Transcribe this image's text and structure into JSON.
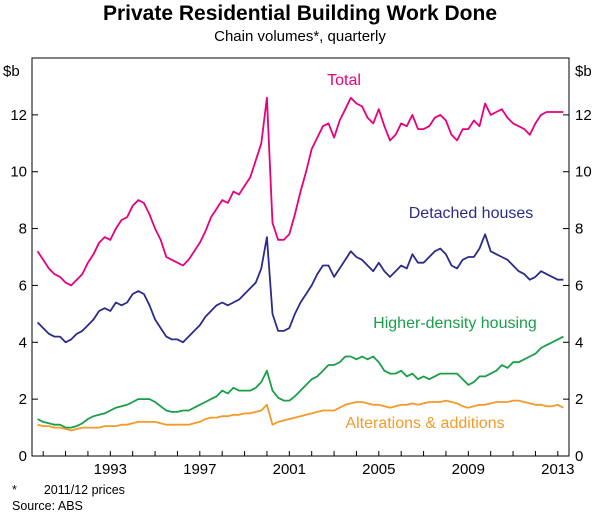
{
  "chart_data": {
    "type": "line",
    "title": "Private Residential Building Work Done",
    "subtitle": "Chain volumes*, quarterly",
    "ylabel_left": "$b",
    "ylabel_right": "$b",
    "ylim": [
      0,
      14
    ],
    "yticks": [
      0,
      2,
      4,
      6,
      8,
      10,
      12
    ],
    "xlim": [
      1989.5,
      2013.5
    ],
    "xticks": [
      1993,
      1997,
      2001,
      2005,
      2009,
      2013
    ],
    "xtick_labels": [
      "1993",
      "1997",
      "2001",
      "2005",
      "2009",
      "2013"
    ],
    "grid": false,
    "series": [
      {
        "name": "Total",
        "color": "#e6007e",
        "x": [
          1989.75,
          1990.0,
          1990.25,
          1990.5,
          1990.75,
          1991.0,
          1991.25,
          1991.5,
          1991.75,
          1992.0,
          1992.25,
          1992.5,
          1992.75,
          1993.0,
          1993.25,
          1993.5,
          1993.75,
          1994.0,
          1994.25,
          1994.5,
          1994.75,
          1995.0,
          1995.25,
          1995.5,
          1995.75,
          1996.0,
          1996.25,
          1996.5,
          1996.75,
          1997.0,
          1997.25,
          1997.5,
          1997.75,
          1998.0,
          1998.25,
          1998.5,
          1998.75,
          1999.0,
          1999.25,
          1999.5,
          1999.75,
          2000.0,
          2000.25,
          2000.5,
          2000.75,
          2001.0,
          2001.25,
          2001.5,
          2001.75,
          2002.0,
          2002.25,
          2002.5,
          2002.75,
          2003.0,
          2003.25,
          2003.5,
          2003.75,
          2004.0,
          2004.25,
          2004.5,
          2004.75,
          2005.0,
          2005.25,
          2005.5,
          2005.75,
          2006.0,
          2006.25,
          2006.5,
          2006.75,
          2007.0,
          2007.25,
          2007.5,
          2007.75,
          2008.0,
          2008.25,
          2008.5,
          2008.75,
          2009.0,
          2009.25,
          2009.5,
          2009.75,
          2010.0,
          2010.25,
          2010.5,
          2010.75,
          2011.0,
          2011.25,
          2011.5,
          2011.75,
          2012.0,
          2012.25,
          2012.5,
          2012.75,
          2013.0,
          2013.25
        ],
        "values": [
          7.2,
          6.9,
          6.6,
          6.4,
          6.3,
          6.1,
          6.0,
          6.2,
          6.4,
          6.8,
          7.1,
          7.5,
          7.7,
          7.6,
          8.0,
          8.3,
          8.4,
          8.8,
          9.0,
          8.9,
          8.5,
          8.0,
          7.6,
          7.0,
          6.9,
          6.8,
          6.7,
          6.9,
          7.2,
          7.5,
          7.9,
          8.4,
          8.7,
          9.0,
          8.9,
          9.3,
          9.2,
          9.5,
          9.8,
          10.4,
          11.0,
          12.6,
          8.2,
          7.6,
          7.6,
          7.8,
          8.5,
          9.3,
          10.0,
          10.8,
          11.2,
          11.6,
          11.7,
          11.2,
          11.8,
          12.2,
          12.6,
          12.4,
          12.3,
          11.9,
          11.7,
          12.2,
          11.6,
          11.1,
          11.3,
          11.7,
          11.6,
          12.0,
          11.5,
          11.5,
          11.6,
          11.9,
          12.0,
          11.8,
          11.3,
          11.1,
          11.5,
          11.5,
          11.8,
          11.6,
          12.4,
          12.0,
          12.1,
          12.2,
          11.9,
          11.7,
          11.6,
          11.5,
          11.3,
          11.7,
          12.0,
          12.1,
          12.1,
          12.1,
          12.1
        ],
        "label": "Total"
      },
      {
        "name": "Detached houses",
        "color": "#2b2b8c",
        "x": [
          1989.75,
          1990.0,
          1990.25,
          1990.5,
          1990.75,
          1991.0,
          1991.25,
          1991.5,
          1991.75,
          1992.0,
          1992.25,
          1992.5,
          1992.75,
          1993.0,
          1993.25,
          1993.5,
          1993.75,
          1994.0,
          1994.25,
          1994.5,
          1994.75,
          1995.0,
          1995.25,
          1995.5,
          1995.75,
          1996.0,
          1996.25,
          1996.5,
          1996.75,
          1997.0,
          1997.25,
          1997.5,
          1997.75,
          1998.0,
          1998.25,
          1998.5,
          1998.75,
          1999.0,
          1999.25,
          1999.5,
          1999.75,
          2000.0,
          2000.25,
          2000.5,
          2000.75,
          2001.0,
          2001.25,
          2001.5,
          2001.75,
          2002.0,
          2002.25,
          2002.5,
          2002.75,
          2003.0,
          2003.25,
          2003.5,
          2003.75,
          2004.0,
          2004.25,
          2004.5,
          2004.75,
          2005.0,
          2005.25,
          2005.5,
          2005.75,
          2006.0,
          2006.25,
          2006.5,
          2006.75,
          2007.0,
          2007.25,
          2007.5,
          2007.75,
          2008.0,
          2008.25,
          2008.5,
          2008.75,
          2009.0,
          2009.25,
          2009.5,
          2009.75,
          2010.0,
          2010.25,
          2010.5,
          2010.75,
          2011.0,
          2011.25,
          2011.5,
          2011.75,
          2012.0,
          2012.25,
          2012.5,
          2012.75,
          2013.0,
          2013.25
        ],
        "values": [
          4.7,
          4.5,
          4.3,
          4.2,
          4.2,
          4.0,
          4.1,
          4.3,
          4.4,
          4.6,
          4.8,
          5.1,
          5.2,
          5.1,
          5.4,
          5.3,
          5.4,
          5.7,
          5.8,
          5.7,
          5.3,
          4.8,
          4.5,
          4.2,
          4.1,
          4.1,
          4.0,
          4.2,
          4.4,
          4.6,
          4.9,
          5.1,
          5.3,
          5.4,
          5.3,
          5.4,
          5.5,
          5.7,
          5.9,
          6.1,
          6.6,
          7.7,
          5.0,
          4.4,
          4.4,
          4.5,
          5.0,
          5.4,
          5.7,
          6.0,
          6.4,
          6.7,
          6.7,
          6.3,
          6.6,
          6.9,
          7.2,
          7.0,
          6.9,
          6.7,
          6.5,
          6.8,
          6.5,
          6.3,
          6.5,
          6.7,
          6.6,
          7.1,
          6.8,
          6.8,
          7.0,
          7.2,
          7.3,
          7.1,
          6.7,
          6.6,
          6.9,
          7.0,
          7.0,
          7.3,
          7.8,
          7.2,
          7.1,
          7.0,
          6.9,
          6.7,
          6.5,
          6.4,
          6.2,
          6.3,
          6.5,
          6.4,
          6.3,
          6.2,
          6.2
        ],
        "label": "Detached houses"
      },
      {
        "name": "Higher-density housing",
        "color": "#1a9e4a",
        "x": [
          1989.75,
          1990.0,
          1990.25,
          1990.5,
          1990.75,
          1991.0,
          1991.25,
          1991.5,
          1991.75,
          1992.0,
          1992.25,
          1992.5,
          1992.75,
          1993.0,
          1993.25,
          1993.5,
          1993.75,
          1994.0,
          1994.25,
          1994.5,
          1994.75,
          1995.0,
          1995.25,
          1995.5,
          1995.75,
          1996.0,
          1996.25,
          1996.5,
          1996.75,
          1997.0,
          1997.25,
          1997.5,
          1997.75,
          1998.0,
          1998.25,
          1998.5,
          1998.75,
          1999.0,
          1999.25,
          1999.5,
          1999.75,
          2000.0,
          2000.25,
          2000.5,
          2000.75,
          2001.0,
          2001.25,
          2001.5,
          2001.75,
          2002.0,
          2002.25,
          2002.5,
          2002.75,
          2003.0,
          2003.25,
          2003.5,
          2003.75,
          2004.0,
          2004.25,
          2004.5,
          2004.75,
          2005.0,
          2005.25,
          2005.5,
          2005.75,
          2006.0,
          2006.25,
          2006.5,
          2006.75,
          2007.0,
          2007.25,
          2007.5,
          2007.75,
          2008.0,
          2008.25,
          2008.5,
          2008.75,
          2009.0,
          2009.25,
          2009.5,
          2009.75,
          2010.0,
          2010.25,
          2010.5,
          2010.75,
          2011.0,
          2011.25,
          2011.5,
          2011.75,
          2012.0,
          2012.25,
          2012.5,
          2012.75,
          2013.0,
          2013.25
        ],
        "values": [
          1.3,
          1.2,
          1.15,
          1.1,
          1.1,
          1.0,
          1.0,
          1.05,
          1.15,
          1.3,
          1.4,
          1.45,
          1.5,
          1.6,
          1.7,
          1.75,
          1.8,
          1.9,
          2.0,
          2.0,
          2.0,
          1.9,
          1.75,
          1.6,
          1.55,
          1.55,
          1.6,
          1.6,
          1.7,
          1.8,
          1.9,
          2.0,
          2.1,
          2.3,
          2.2,
          2.4,
          2.3,
          2.3,
          2.3,
          2.4,
          2.6,
          3.0,
          2.3,
          2.05,
          1.95,
          1.95,
          2.1,
          2.3,
          2.5,
          2.7,
          2.8,
          3.0,
          3.2,
          3.2,
          3.3,
          3.5,
          3.5,
          3.4,
          3.5,
          3.4,
          3.5,
          3.3,
          3.0,
          2.9,
          2.9,
          3.0,
          2.8,
          2.9,
          2.7,
          2.8,
          2.7,
          2.8,
          2.9,
          2.9,
          2.9,
          2.9,
          2.7,
          2.5,
          2.6,
          2.8,
          2.8,
          2.9,
          3.0,
          3.2,
          3.1,
          3.3,
          3.3,
          3.4,
          3.5,
          3.6,
          3.8,
          3.9,
          4.0,
          4.1,
          4.2
        ],
        "label": "Higher-density housing"
      },
      {
        "name": "Alterations & additions",
        "color": "#f39a2b",
        "x": [
          1989.75,
          1990.0,
          1990.25,
          1990.5,
          1990.75,
          1991.0,
          1991.25,
          1991.5,
          1991.75,
          1992.0,
          1992.25,
          1992.5,
          1992.75,
          1993.0,
          1993.25,
          1993.5,
          1993.75,
          1994.0,
          1994.25,
          1994.5,
          1994.75,
          1995.0,
          1995.25,
          1995.5,
          1995.75,
          1996.0,
          1996.25,
          1996.5,
          1996.75,
          1997.0,
          1997.25,
          1997.5,
          1997.75,
          1998.0,
          1998.25,
          1998.5,
          1998.75,
          1999.0,
          1999.25,
          1999.5,
          1999.75,
          2000.0,
          2000.25,
          2000.5,
          2000.75,
          2001.0,
          2001.25,
          2001.5,
          2001.75,
          2002.0,
          2002.25,
          2002.5,
          2002.75,
          2003.0,
          2003.25,
          2003.5,
          2003.75,
          2004.0,
          2004.25,
          2004.5,
          2004.75,
          2005.0,
          2005.25,
          2005.5,
          2005.75,
          2006.0,
          2006.25,
          2006.5,
          2006.75,
          2007.0,
          2007.25,
          2007.5,
          2007.75,
          2008.0,
          2008.25,
          2008.5,
          2008.75,
          2009.0,
          2009.25,
          2009.5,
          2009.75,
          2010.0,
          2010.25,
          2010.5,
          2010.75,
          2011.0,
          2011.25,
          2011.5,
          2011.75,
          2012.0,
          2012.25,
          2012.5,
          2012.75,
          2013.0,
          2013.25
        ],
        "values": [
          1.1,
          1.05,
          1.05,
          1.0,
          1.0,
          0.95,
          0.9,
          0.95,
          1.0,
          1.0,
          1.0,
          1.0,
          1.05,
          1.05,
          1.05,
          1.1,
          1.1,
          1.15,
          1.2,
          1.2,
          1.2,
          1.2,
          1.15,
          1.1,
          1.1,
          1.1,
          1.1,
          1.1,
          1.15,
          1.2,
          1.3,
          1.35,
          1.35,
          1.4,
          1.4,
          1.45,
          1.45,
          1.5,
          1.5,
          1.55,
          1.6,
          1.8,
          1.1,
          1.2,
          1.25,
          1.3,
          1.35,
          1.4,
          1.45,
          1.5,
          1.55,
          1.6,
          1.6,
          1.6,
          1.7,
          1.8,
          1.85,
          1.9,
          1.9,
          1.85,
          1.8,
          1.8,
          1.75,
          1.7,
          1.75,
          1.8,
          1.8,
          1.85,
          1.8,
          1.85,
          1.9,
          1.9,
          1.9,
          1.95,
          1.9,
          1.85,
          1.75,
          1.7,
          1.75,
          1.8,
          1.8,
          1.85,
          1.9,
          1.9,
          1.9,
          1.95,
          1.95,
          1.9,
          1.85,
          1.8,
          1.8,
          1.75,
          1.75,
          1.8,
          1.7
        ],
        "label": "Alterations & additions"
      }
    ],
    "footnote_marker": "*",
    "footnote_text": "2011/12 prices",
    "source": "Source: ABS"
  }
}
